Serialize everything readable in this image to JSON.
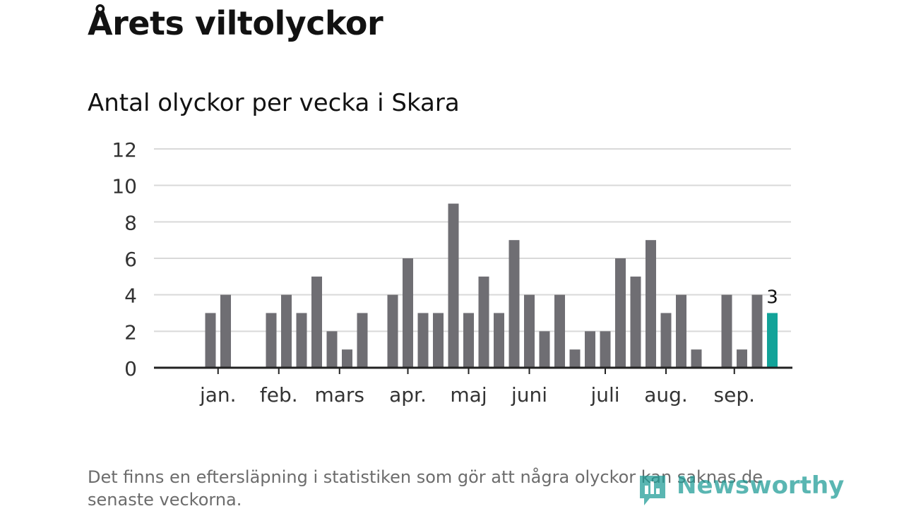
{
  "title": "Årets viltolyckor",
  "subtitle": "Antal olyckor per vecka i Skara",
  "footnote": "Det finns en eftersläpning i statistiken som gör att några olyckor kan saknas de senaste veckorna.",
  "logo": {
    "text": "Newsworthy",
    "icon": "newsworthy-logo-icon"
  },
  "colors": {
    "bar": "#6f6e73",
    "highlight": "#12a399",
    "grid": "#d9d9d9",
    "axis": "#222222"
  },
  "chart_data": {
    "type": "bar",
    "ylim": [
      0,
      12
    ],
    "yticks": [
      0,
      2,
      4,
      6,
      8,
      10,
      12
    ],
    "grid": true,
    "values": [
      null,
      null,
      3,
      4,
      null,
      null,
      3,
      4,
      3,
      5,
      2,
      1,
      3,
      null,
      4,
      6,
      3,
      3,
      9,
      3,
      5,
      3,
      7,
      4,
      2,
      4,
      1,
      2,
      2,
      6,
      5,
      7,
      3,
      4,
      1,
      null,
      4,
      1,
      4,
      3
    ],
    "highlight_index": 39,
    "highlight_label": "3",
    "month_labels": [
      {
        "label": "jan.",
        "week": 2.5
      },
      {
        "label": "feb.",
        "week": 6.5
      },
      {
        "label": "mars",
        "week": 10.5
      },
      {
        "label": "apr.",
        "week": 15
      },
      {
        "label": "maj",
        "week": 19
      },
      {
        "label": "juni",
        "week": 23
      },
      {
        "label": "juli",
        "week": 28
      },
      {
        "label": "aug.",
        "week": 32
      },
      {
        "label": "sep.",
        "week": 36.5
      }
    ]
  }
}
